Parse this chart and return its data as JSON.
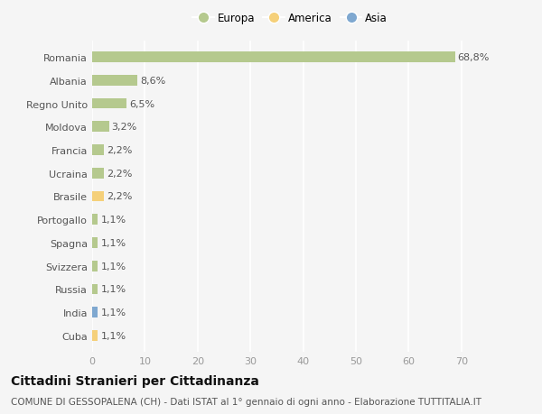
{
  "categories": [
    "Romania",
    "Albania",
    "Regno Unito",
    "Moldova",
    "Francia",
    "Ucraina",
    "Brasile",
    "Portogallo",
    "Spagna",
    "Svizzera",
    "Russia",
    "India",
    "Cuba"
  ],
  "values": [
    68.8,
    8.6,
    6.5,
    3.2,
    2.2,
    2.2,
    2.2,
    1.1,
    1.1,
    1.1,
    1.1,
    1.1,
    1.1
  ],
  "labels": [
    "68,8%",
    "8,6%",
    "6,5%",
    "3,2%",
    "2,2%",
    "2,2%",
    "2,2%",
    "1,1%",
    "1,1%",
    "1,1%",
    "1,1%",
    "1,1%",
    "1,1%"
  ],
  "continents": [
    "Europa",
    "Europa",
    "Europa",
    "Europa",
    "Europa",
    "Europa",
    "America",
    "Europa",
    "Europa",
    "Europa",
    "Europa",
    "Asia",
    "America"
  ],
  "colors": {
    "Europa": "#b5c98e",
    "America": "#f5d07a",
    "Asia": "#7fa8d0"
  },
  "legend_entries": [
    "Europa",
    "America",
    "Asia"
  ],
  "legend_colors": [
    "#b5c98e",
    "#f5d07a",
    "#7fa8d0"
  ],
  "xlim": [
    0,
    75
  ],
  "xticks": [
    0,
    10,
    20,
    30,
    40,
    50,
    60,
    70
  ],
  "title": "Cittadini Stranieri per Cittadinanza",
  "subtitle": "COMUNE DI GESSOPALENA (CH) - Dati ISTAT al 1° gennaio di ogni anno - Elaborazione TUTTITALIA.IT",
  "background_color": "#f5f5f5",
  "grid_color": "#ffffff",
  "bar_height": 0.45,
  "label_fontsize": 8,
  "tick_fontsize": 8,
  "title_fontsize": 10,
  "subtitle_fontsize": 7.5
}
